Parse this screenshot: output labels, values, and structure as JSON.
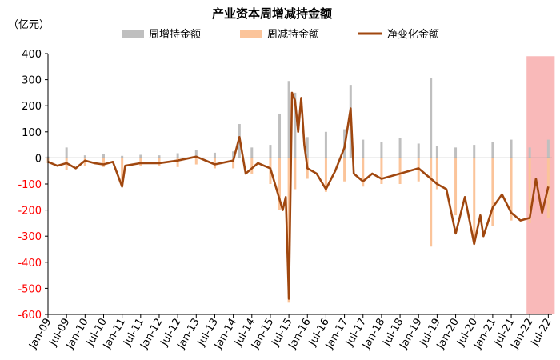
{
  "chart_data": {
    "type": "bar",
    "title": "产业资本周增减持金额",
    "unit_label": "（亿元）",
    "ylim": [
      -600,
      400
    ],
    "yticks": [
      400,
      300,
      200,
      100,
      0,
      -100,
      -200,
      -300,
      -400,
      -500,
      -600
    ],
    "ytick_labels": [
      "400",
      "300",
      "200",
      "100",
      "0",
      "-100",
      "-200",
      "-300",
      "-400",
      "-500",
      "-600"
    ],
    "xticks": [
      "Jan-09",
      "Jul-09",
      "Jan-10",
      "Jul-10",
      "Jan-11",
      "Jul-11",
      "Jan-12",
      "Jul-12",
      "Jan-13",
      "Jul-13",
      "Jan-14",
      "Jul-14",
      "Jan-15",
      "Jul-15",
      "Jan-16",
      "Jul-16",
      "Jan-17",
      "Jul-17",
      "Jan-18",
      "Jul-18",
      "Jan-19",
      "Jul-19",
      "Jan-20",
      "Jul-20",
      "Jan-21",
      "Jul-21",
      "Jan-22",
      "Jul-22"
    ],
    "legend_position": "top-center",
    "highlight_range": [
      "Jan-22",
      "Jul-22"
    ],
    "colors": {
      "increase": "#bfbfbf",
      "decrease": "#fbc49a",
      "net": "#a0470f",
      "highlight": "#f7a1a1",
      "negative_tick": "#ff0000"
    },
    "series": [
      {
        "name": "周增持金额",
        "kind": "bar",
        "points": [
          [
            "Jan-09",
            5
          ],
          [
            "Jul-09",
            40
          ],
          [
            "Jan-10",
            10
          ],
          [
            "Jul-10",
            15
          ],
          [
            "Jan-11",
            8
          ],
          [
            "Jul-11",
            12
          ],
          [
            "Jan-12",
            10
          ],
          [
            "Jul-12",
            18
          ],
          [
            "Jan-13",
            30
          ],
          [
            "Jul-13",
            20
          ],
          [
            "Jan-14",
            25
          ],
          [
            "Mar-14",
            130
          ],
          [
            "Jul-14",
            40
          ],
          [
            "Jan-15",
            50
          ],
          [
            "Apr-15",
            170
          ],
          [
            "Jul-15",
            295
          ],
          [
            "Sep-15",
            250
          ],
          [
            "Jan-16",
            80
          ],
          [
            "Jul-16",
            100
          ],
          [
            "Jan-17",
            110
          ],
          [
            "Mar-17",
            280
          ],
          [
            "Jul-17",
            70
          ],
          [
            "Jan-18",
            60
          ],
          [
            "Jul-18",
            75
          ],
          [
            "Jan-19",
            55
          ],
          [
            "May-19",
            305
          ],
          [
            "Jul-19",
            45
          ],
          [
            "Jan-20",
            40
          ],
          [
            "Jul-20",
            50
          ],
          [
            "Jan-21",
            60
          ],
          [
            "Jul-21",
            70
          ],
          [
            "Jan-22",
            40
          ],
          [
            "Jul-22",
            70
          ]
        ]
      },
      {
        "name": "周减持金额",
        "kind": "bar",
        "points": [
          [
            "Jan-09",
            -20
          ],
          [
            "Jul-09",
            -45
          ],
          [
            "Jan-10",
            -30
          ],
          [
            "Jul-10",
            -35
          ],
          [
            "Jan-11",
            -105
          ],
          [
            "Jul-11",
            -30
          ],
          [
            "Jan-12",
            -30
          ],
          [
            "Jul-12",
            -35
          ],
          [
            "Jan-13",
            -25
          ],
          [
            "Jul-13",
            -40
          ],
          [
            "Jan-14",
            -40
          ],
          [
            "Jul-14",
            -60
          ],
          [
            "Jan-15",
            -100
          ],
          [
            "Apr-15",
            -200
          ],
          [
            "Jul-15",
            -555
          ],
          [
            "Sep-15",
            -120
          ],
          [
            "Jan-16",
            -80
          ],
          [
            "Jul-16",
            -130
          ],
          [
            "Jan-17",
            -90
          ],
          [
            "Jul-17",
            -110
          ],
          [
            "Jan-18",
            -100
          ],
          [
            "Jul-18",
            -100
          ],
          [
            "Jan-19",
            -90
          ],
          [
            "May-19",
            -340
          ],
          [
            "Jul-19",
            -120
          ],
          [
            "Jan-20",
            -220
          ],
          [
            "Jul-20",
            -330
          ],
          [
            "Jan-21",
            -260
          ],
          [
            "Jul-21",
            -240
          ],
          [
            "Jan-22",
            -250
          ],
          [
            "Jul-22",
            -230
          ]
        ]
      },
      {
        "name": "净变化金额",
        "kind": "line",
        "points": [
          [
            "Jan-09",
            -15
          ],
          [
            "Apr-09",
            -30
          ],
          [
            "Jul-09",
            -20
          ],
          [
            "Oct-09",
            -40
          ],
          [
            "Jan-10",
            -10
          ],
          [
            "Apr-10",
            -20
          ],
          [
            "Jul-10",
            -25
          ],
          [
            "Oct-10",
            -15
          ],
          [
            "Jan-11",
            -110
          ],
          [
            "Feb-11",
            -30
          ],
          [
            "Jul-11",
            -20
          ],
          [
            "Jan-12",
            -20
          ],
          [
            "Jul-12",
            -10
          ],
          [
            "Jan-13",
            5
          ],
          [
            "Jul-13",
            -25
          ],
          [
            "Jan-14",
            -10
          ],
          [
            "Mar-14",
            80
          ],
          [
            "May-14",
            -60
          ],
          [
            "Sep-14",
            -20
          ],
          [
            "Jan-15",
            -40
          ],
          [
            "Mar-15",
            -120
          ],
          [
            "May-15",
            -200
          ],
          [
            "Jun-15",
            -150
          ],
          [
            "Jul-15",
            -540
          ],
          [
            "Aug-15",
            250
          ],
          [
            "Sep-15",
            220
          ],
          [
            "Oct-15",
            100
          ],
          [
            "Nov-15",
            230
          ],
          [
            "Dec-15",
            50
          ],
          [
            "Jan-16",
            -40
          ],
          [
            "Apr-16",
            -60
          ],
          [
            "Jul-16",
            -120
          ],
          [
            "Oct-16",
            -50
          ],
          [
            "Jan-17",
            40
          ],
          [
            "Mar-17",
            190
          ],
          [
            "Apr-17",
            -60
          ],
          [
            "Jul-17",
            -90
          ],
          [
            "Oct-17",
            -60
          ],
          [
            "Jan-18",
            -80
          ],
          [
            "Jul-18",
            -60
          ],
          [
            "Jan-19",
            -40
          ],
          [
            "May-19",
            -80
          ],
          [
            "Jul-19",
            -100
          ],
          [
            "Oct-19",
            -120
          ],
          [
            "Jan-20",
            -290
          ],
          [
            "Apr-20",
            -150
          ],
          [
            "Jul-20",
            -330
          ],
          [
            "Sep-20",
            -220
          ],
          [
            "Oct-20",
            -300
          ],
          [
            "Jan-21",
            -190
          ],
          [
            "Apr-21",
            -140
          ],
          [
            "Jul-21",
            -210
          ],
          [
            "Oct-21",
            -240
          ],
          [
            "Jan-22",
            -230
          ],
          [
            "Mar-22",
            -80
          ],
          [
            "May-22",
            -210
          ],
          [
            "Jul-22",
            -110
          ]
        ]
      }
    ]
  }
}
